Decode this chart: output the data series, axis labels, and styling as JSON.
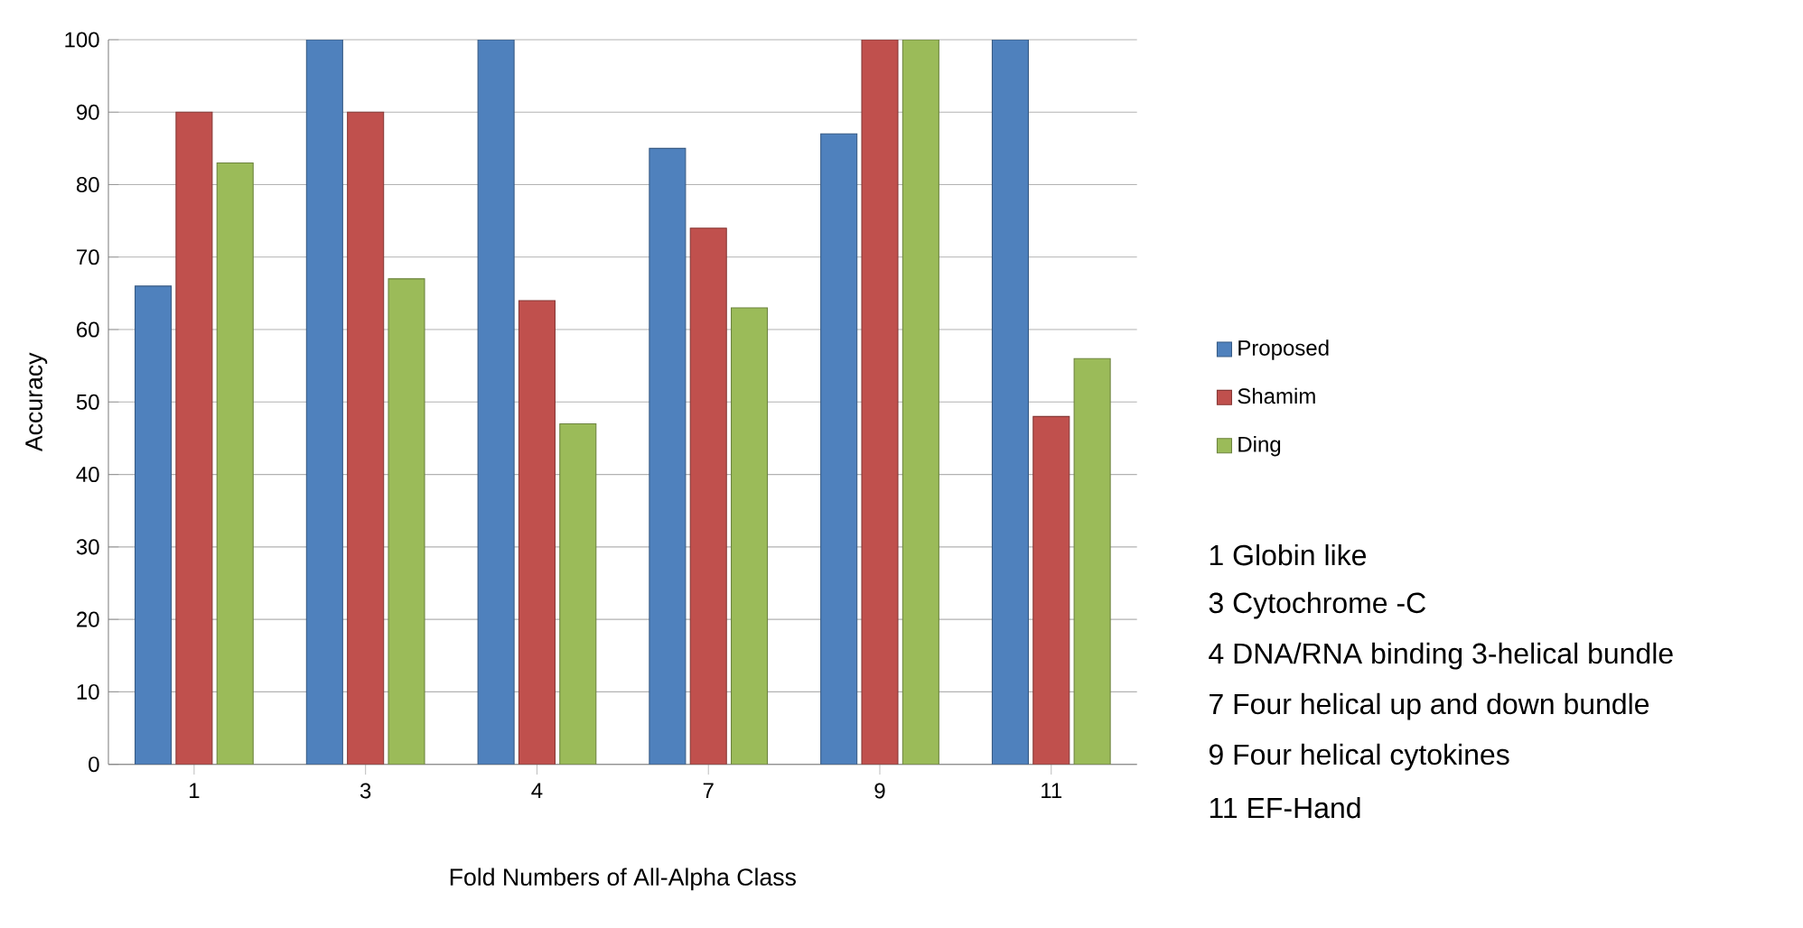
{
  "chart_data": {
    "type": "bar",
    "xlabel": "Fold Numbers of All-Alpha Class",
    "ylabel": "Accuracy",
    "categories": [
      "1",
      "3",
      "4",
      "7",
      "9",
      "11"
    ],
    "series": [
      {
        "name": "Proposed",
        "color": "#4f81bd",
        "values": [
          66,
          100,
          100,
          85,
          87,
          100
        ]
      },
      {
        "name": "Shamim",
        "color": "#c0504d",
        "values": [
          90,
          90,
          64,
          74,
          100,
          48
        ]
      },
      {
        "name": "Ding",
        "color": "#9bbb59",
        "values": [
          83,
          67,
          47,
          63,
          100,
          56
        ]
      }
    ],
    "ylim": [
      0,
      100
    ],
    "yticks": [
      0,
      10,
      20,
      30,
      40,
      50,
      60,
      70,
      80,
      90,
      100
    ],
    "grid": "y",
    "legend": "right",
    "annotations": [
      "1 Globin like",
      "3 Cytochrome -C",
      "4 DNA/RNA binding 3-helical bundle",
      "7 Four helical up and down bundle",
      "9 Four helical cytokines",
      "11 EF-Hand"
    ]
  }
}
